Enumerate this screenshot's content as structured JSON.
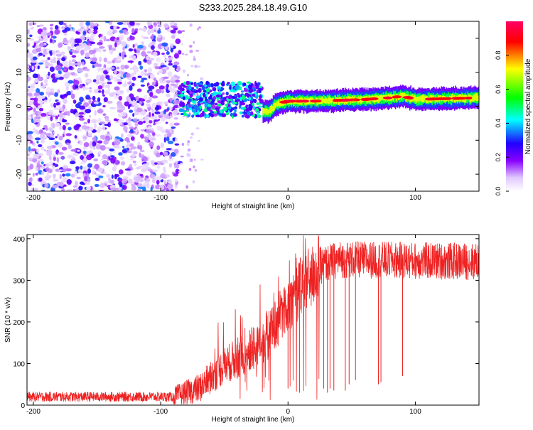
{
  "page_title": "S233.2025.284.18.49.G10",
  "chart_data": [
    {
      "type": "heatmap",
      "title": "S233.2025.284.18.49.G10",
      "xlabel": "Height of straight line (km)",
      "ylabel": "Frequency (Hz)",
      "xlim": [
        -205,
        150
      ],
      "ylim": [
        -25,
        25
      ],
      "xticks": [
        -200,
        -100,
        0,
        100
      ],
      "yticks": [
        -20,
        -10,
        0,
        10,
        20
      ],
      "colorbar": {
        "label": "Normalized spectral amplitude",
        "range": [
          0,
          1
        ],
        "ticks": [
          0.0,
          0.2,
          0.4,
          0.6,
          0.8
        ],
        "colormap": [
          "#ffffff",
          "#8800ff",
          "#2200ff",
          "#00ffff",
          "#00ff00",
          "#ffff00",
          "#ff0000",
          "#ff0066"
        ]
      },
      "description_regions": [
        {
          "x_range": [
            -205,
            -85
          ],
          "kind": "noise",
          "amplitude": [
            0.05,
            0.35
          ]
        },
        {
          "x_range": [
            -85,
            -20
          ],
          "kind": "emerging_signal",
          "frequency_range": [
            -3,
            7
          ]
        },
        {
          "x_range": [
            -20,
            150
          ],
          "kind": "strong_signal",
          "frequency_center": [
            -1,
            3
          ]
        }
      ],
      "signal_track": [
        {
          "x": -20,
          "f": -1.5
        },
        {
          "x": -15,
          "f": -1.5
        },
        {
          "x": -10,
          "f": 0.5
        },
        {
          "x": 0,
          "f": 1.5
        },
        {
          "x": 20,
          "f": 1.5
        },
        {
          "x": 60,
          "f": 2.0
        },
        {
          "x": 80,
          "f": 2.5
        },
        {
          "x": 90,
          "f": 3.0
        },
        {
          "x": 100,
          "f": 2.0
        },
        {
          "x": 150,
          "f": 2.5
        }
      ]
    },
    {
      "type": "line",
      "xlabel": "Height of straight line (km)",
      "ylabel": "SNR (10 * v/v)",
      "xlim": [
        -205,
        150
      ],
      "ylim": [
        0,
        410
      ],
      "xticks": [
        -200,
        -100,
        0,
        100
      ],
      "yticks": [
        0,
        100,
        200,
        300,
        400
      ],
      "series": [
        {
          "name": "SNR",
          "color": "#ee2222",
          "trend": [
            {
              "x": -205,
              "y": 20
            },
            {
              "x": -90,
              "y": 20
            },
            {
              "x": -70,
              "y": 40
            },
            {
              "x": -50,
              "y": 95
            },
            {
              "x": -30,
              "y": 130
            },
            {
              "x": -15,
              "y": 170
            },
            {
              "x": -5,
              "y": 220
            },
            {
              "x": 5,
              "y": 265
            },
            {
              "x": 15,
              "y": 300
            },
            {
              "x": 25,
              "y": 335
            },
            {
              "x": 40,
              "y": 350
            },
            {
              "x": 150,
              "y": 345
            }
          ],
          "dropouts": [
            {
              "x": 0,
              "y": 40
            },
            {
              "x": 9,
              "y": 30
            },
            {
              "x": 28,
              "y": 40
            },
            {
              "x": 31,
              "y": 30
            },
            {
              "x": 33,
              "y": 40
            },
            {
              "x": 36,
              "y": 35
            },
            {
              "x": 45,
              "y": 35
            },
            {
              "x": 48,
              "y": 50
            },
            {
              "x": 53,
              "y": 60
            },
            {
              "x": 71,
              "y": 50
            },
            {
              "x": 73,
              "y": 55
            },
            {
              "x": 90,
              "y": 70
            }
          ]
        }
      ]
    }
  ]
}
